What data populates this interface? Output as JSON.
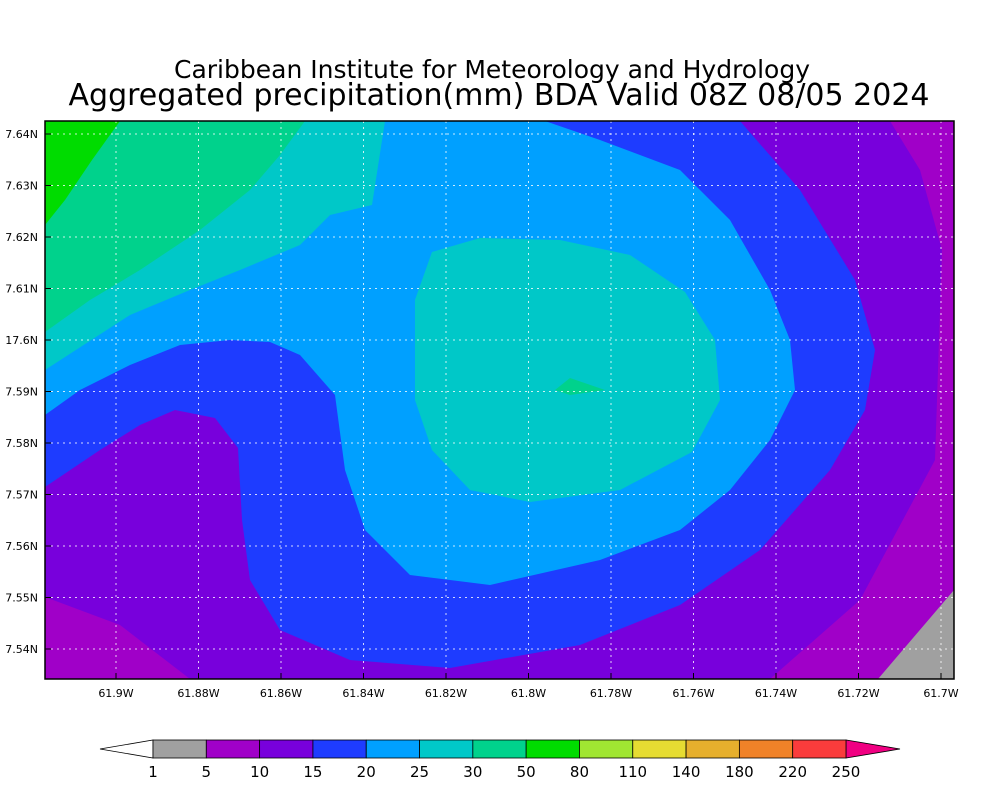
{
  "title": "Caribbean Institute for Meteorology and Hydrology",
  "subtitle": "Aggregated precipitation(mm) BDA Valid 08Z 08/05 2024",
  "x_labels": [
    "61.9W",
    "61.88W",
    "61.86W",
    "61.84W",
    "61.82W",
    "61.8W",
    "61.78W",
    "61.76W",
    "61.74W",
    "61.72W",
    "61.7W"
  ],
  "y_labels": [
    "7.64N",
    "7.63N",
    "7.62N",
    "7.61N",
    "17.6N",
    "7.59N",
    "7.58N",
    "7.57N",
    "7.56N",
    "7.55N",
    "7.54N"
  ],
  "colorbar": {
    "levels": [
      1,
      5,
      10,
      15,
      20,
      25,
      30,
      50,
      80,
      110,
      140,
      180,
      220,
      250
    ],
    "colors": [
      "#a0a0a0",
      "#a000c8",
      "#7800dc",
      "#1e3cff",
      "#00a0ff",
      "#00c8c8",
      "#00d28c",
      "#00dc00",
      "#a0e632",
      "#e6dc32",
      "#e6af2d",
      "#f08228",
      "#fa3c3c"
    ],
    "under_color": "#ffffff",
    "over_color": "#f00082"
  }
}
